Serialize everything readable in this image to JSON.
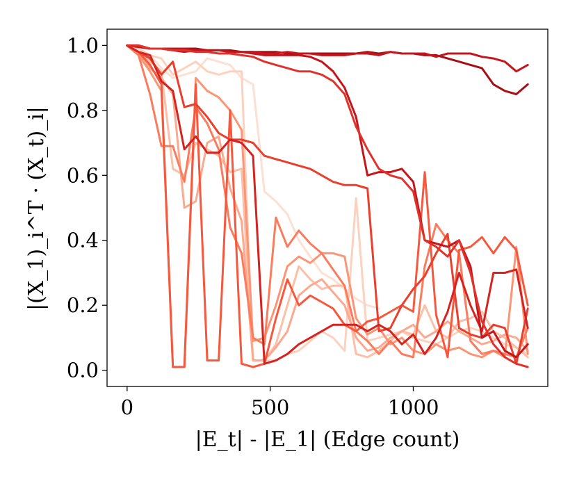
{
  "chart_data": {
    "type": "line",
    "title": "",
    "xlabel": "|E_t| - |E_1| (Edge count)",
    "ylabel": "|(X_1)_i^T · (X_t)_i|",
    "xlim": [
      -70,
      1470
    ],
    "ylim": [
      -0.05,
      1.05
    ],
    "xticks": [
      0,
      500,
      1000
    ],
    "xtick_labels": [
      "0",
      "500",
      "1000"
    ],
    "yticks": [
      0.0,
      0.2,
      0.4,
      0.6,
      0.8,
      1.0
    ],
    "ytick_labels": [
      "0.0",
      "0.2",
      "0.4",
      "0.6",
      "0.8",
      "1.0"
    ],
    "grid": false,
    "legend": "none",
    "series": [
      {
        "color": "#fde0d2",
        "x": [
          0,
          40,
          80,
          120,
          160,
          200,
          240,
          280,
          320,
          360,
          400,
          440,
          480,
          520,
          560,
          600,
          640,
          680,
          720,
          760,
          800,
          840,
          880
        ],
        "y": [
          1.0,
          0.99,
          0.97,
          0.93,
          0.9,
          0.91,
          0.92,
          0.96,
          0.95,
          0.94,
          0.9,
          0.88,
          0.55,
          0.52,
          0.48,
          0.4,
          0.35,
          0.3,
          0.28,
          0.25,
          0.22,
          0.2,
          0.19
        ]
      },
      {
        "color": "#fcd2bf",
        "x": [
          0,
          40,
          80,
          120,
          160,
          200,
          240,
          280,
          320,
          360,
          400,
          440,
          480,
          520,
          560,
          600,
          640,
          680,
          720,
          760,
          800,
          840,
          880,
          920,
          960,
          1000,
          1040,
          1080,
          1120,
          1160,
          1200,
          1240,
          1280,
          1320,
          1360,
          1400
        ],
        "y": [
          1.0,
          0.99,
          0.97,
          0.96,
          0.91,
          0.93,
          0.95,
          0.92,
          0.91,
          0.92,
          0.92,
          0.03,
          0.03,
          0.03,
          0.05,
          0.06,
          0.09,
          0.12,
          0.1,
          0.06,
          0.53,
          0.09,
          0.1,
          0.11,
          0.12,
          0.1,
          0.09,
          0.08,
          0.1,
          0.12,
          0.13,
          0.12,
          0.1,
          0.08,
          0.07,
          0.05
        ]
      },
      {
        "color": "#fcbfa7",
        "x": [
          0,
          40,
          80,
          120,
          160,
          200,
          240,
          280,
          320,
          360,
          400,
          440,
          480,
          520,
          560,
          600,
          640,
          680,
          720,
          760,
          800,
          840,
          880,
          920,
          960,
          1000,
          1040,
          1080,
          1120,
          1160,
          1200,
          1240,
          1280,
          1320,
          1360,
          1400
        ],
        "y": [
          1.0,
          0.98,
          0.95,
          0.92,
          0.62,
          0.6,
          0.7,
          0.68,
          0.66,
          0.61,
          0.62,
          0.03,
          0.03,
          0.08,
          0.2,
          0.32,
          0.28,
          0.25,
          0.26,
          0.26,
          0.05,
          0.04,
          0.06,
          0.09,
          0.12,
          0.11,
          0.2,
          0.12,
          0.1,
          0.15,
          0.16,
          0.18,
          0.12,
          0.1,
          0.07,
          0.04
        ]
      },
      {
        "color": "#fca98f",
        "x": [
          0,
          40,
          80,
          120,
          160,
          200,
          240,
          280,
          320,
          360,
          400,
          440,
          480,
          520,
          560,
          600,
          640,
          680,
          720,
          760,
          800,
          840,
          880,
          920,
          960,
          1000,
          1040,
          1080,
          1120,
          1160,
          1200,
          1240,
          1280,
          1320,
          1360,
          1400
        ],
        "y": [
          1.0,
          0.98,
          0.93,
          0.9,
          0.85,
          0.5,
          0.52,
          0.7,
          0.72,
          0.56,
          0.46,
          0.03,
          0.03,
          0.07,
          0.12,
          0.23,
          0.26,
          0.28,
          0.24,
          0.2,
          0.1,
          0.06,
          0.07,
          0.1,
          0.12,
          0.14,
          0.1,
          0.12,
          0.15,
          0.12,
          0.1,
          0.08,
          0.09,
          0.11,
          0.1,
          0.06
        ]
      },
      {
        "color": "#fc9576",
        "x": [
          0,
          40,
          80,
          120,
          160,
          200,
          240,
          280,
          320,
          360,
          400,
          440,
          480,
          520,
          560,
          600,
          640,
          680,
          720,
          760,
          800,
          840,
          880,
          920,
          960,
          1000,
          1040,
          1080,
          1120,
          1160,
          1200,
          1240,
          1280,
          1320,
          1360,
          1400
        ],
        "y": [
          1.0,
          0.97,
          0.92,
          0.86,
          0.01,
          0.01,
          0.9,
          0.86,
          0.84,
          0.8,
          0.74,
          0.09,
          0.1,
          0.2,
          0.32,
          0.35,
          0.33,
          0.36,
          0.36,
          0.35,
          0.16,
          0.11,
          0.13,
          0.08,
          0.1,
          0.06,
          0.05,
          0.08,
          0.06,
          0.07,
          0.05,
          0.04,
          0.06,
          0.04,
          0.38,
          0.05
        ]
      },
      {
        "color": "#fb7b5c",
        "x": [
          0,
          40,
          80,
          120,
          160,
          200,
          240,
          280,
          320,
          360,
          400,
          440,
          480,
          520,
          560,
          600,
          640,
          680,
          720,
          760,
          800,
          840,
          880,
          920,
          960,
          1000,
          1040,
          1080,
          1120,
          1160,
          1200,
          1240,
          1280,
          1320,
          1360,
          1400
        ],
        "y": [
          1.0,
          0.97,
          0.85,
          0.69,
          0.69,
          0.58,
          0.81,
          0.76,
          0.68,
          0.44,
          0.36,
          0.1,
          0.08,
          0.47,
          0.38,
          0.43,
          0.39,
          0.36,
          0.31,
          0.26,
          0.12,
          0.09,
          0.05,
          0.09,
          0.05,
          0.04,
          0.32,
          0.45,
          0.4,
          0.36,
          0.09,
          0.05,
          0.06,
          0.05,
          0.04,
          0.13
        ]
      },
      {
        "color": "#f6583e",
        "x": [
          0,
          40,
          80,
          120,
          160,
          200,
          240,
          280,
          320,
          360,
          400,
          440,
          480,
          520,
          560,
          600,
          640,
          680,
          720,
          760,
          800,
          840,
          880,
          920,
          960,
          1000,
          1040,
          1080,
          1120,
          1160,
          1200,
          1240,
          1280,
          1320,
          1360,
          1400
        ],
        "y": [
          1.0,
          0.98,
          0.94,
          0.88,
          0.01,
          0.01,
          0.88,
          0.03,
          0.03,
          0.8,
          0.02,
          0.01,
          0.02,
          0.16,
          0.28,
          0.2,
          0.23,
          0.21,
          0.19,
          0.14,
          0.12,
          0.15,
          0.16,
          0.18,
          0.2,
          0.18,
          0.61,
          0.17,
          0.04,
          0.37,
          0.38,
          0.41,
          0.36,
          0.41,
          0.37,
          0.2
        ]
      },
      {
        "color": "#ea3f2c",
        "x": [
          0,
          40,
          80,
          120,
          160,
          200,
          240,
          280,
          320,
          360,
          400,
          440,
          480,
          520,
          560,
          600,
          640,
          680,
          720,
          760,
          800,
          840,
          880,
          920,
          960,
          1000,
          1040,
          1080,
          1120,
          1160,
          1200,
          1240,
          1280,
          1320,
          1360,
          1400
        ],
        "y": [
          1.0,
          0.98,
          0.96,
          0.91,
          0.95,
          0.81,
          0.82,
          0.78,
          0.73,
          0.71,
          0.71,
          0.7,
          0.66,
          0.65,
          0.64,
          0.63,
          0.62,
          0.6,
          0.58,
          0.57,
          0.57,
          0.56,
          0.12,
          0.13,
          0.2,
          0.25,
          0.29,
          0.36,
          0.42,
          0.13,
          0.11,
          0.1,
          0.14,
          0.13,
          0.02,
          0.19
        ]
      },
      {
        "color": "#d52420",
        "x": [
          0,
          40,
          80,
          120,
          160,
          200,
          240,
          280,
          320,
          360,
          400,
          440,
          480,
          520,
          560,
          600,
          640,
          680,
          720,
          760,
          800,
          840,
          880,
          920,
          960,
          1000,
          1040,
          1080,
          1120,
          1160,
          1200,
          1240,
          1280,
          1320,
          1360,
          1400
        ],
        "y": [
          1.0,
          0.98,
          0.97,
          0.89,
          0.86,
          0.68,
          0.72,
          0.67,
          0.67,
          0.71,
          0.7,
          0.66,
          0.02,
          0.03,
          0.05,
          0.08,
          0.1,
          0.12,
          0.14,
          0.14,
          0.14,
          0.12,
          0.14,
          0.12,
          0.08,
          0.11,
          0.05,
          0.1,
          0.18,
          0.3,
          0.2,
          0.12,
          0.3,
          0.3,
          0.31,
          0.13
        ]
      },
      {
        "color": "#c4161c",
        "x": [
          0,
          40,
          80,
          120,
          160,
          200,
          240,
          280,
          320,
          360,
          400,
          440,
          480,
          520,
          560,
          600,
          640,
          680,
          720,
          760,
          800,
          840,
          880,
          920,
          960,
          1000,
          1040,
          1080,
          1120,
          1160,
          1200,
          1240,
          1280,
          1320,
          1360,
          1400
        ],
        "y": [
          1.0,
          0.995,
          0.99,
          0.99,
          0.985,
          0.98,
          0.985,
          0.985,
          0.985,
          0.98,
          0.98,
          0.975,
          0.97,
          0.97,
          0.97,
          0.97,
          0.965,
          0.95,
          0.92,
          0.87,
          0.78,
          0.6,
          0.61,
          0.61,
          0.62,
          0.58,
          0.4,
          0.39,
          0.38,
          0.4,
          0.32,
          0.1,
          0.12,
          0.06,
          0.04,
          0.08
        ]
      },
      {
        "color": "#a50f15",
        "x": [
          0,
          40,
          80,
          120,
          160,
          200,
          240,
          280,
          320,
          360,
          400,
          440,
          480,
          520,
          560,
          600,
          640,
          680,
          720,
          760,
          800,
          840,
          880,
          920,
          960,
          1000,
          1040,
          1080,
          1120,
          1160,
          1200,
          1240,
          1280,
          1320,
          1360,
          1400
        ],
        "y": [
          1.0,
          1.0,
          0.99,
          0.99,
          0.99,
          0.99,
          0.99,
          0.985,
          0.985,
          0.985,
          0.98,
          0.98,
          0.98,
          0.98,
          0.975,
          0.975,
          0.975,
          0.975,
          0.975,
          0.975,
          0.975,
          0.98,
          0.975,
          0.98,
          0.975,
          0.975,
          0.97,
          0.97,
          0.96,
          0.95,
          0.94,
          0.93,
          0.88,
          0.86,
          0.85,
          0.88
        ]
      },
      {
        "color": "#c4161c",
        "x": [
          0,
          40,
          80,
          120,
          160,
          200,
          240,
          280,
          320,
          360,
          400,
          440,
          480,
          520,
          560,
          600,
          640,
          680,
          720,
          760,
          800,
          840,
          880,
          920,
          960,
          1000,
          1040,
          1080,
          1120,
          1160,
          1200,
          1240,
          1280,
          1320,
          1360,
          1400
        ],
        "y": [
          1.0,
          1.0,
          0.99,
          0.99,
          0.99,
          0.99,
          0.985,
          0.985,
          0.985,
          0.98,
          0.98,
          0.98,
          0.975,
          0.975,
          0.98,
          0.975,
          0.975,
          0.97,
          0.97,
          0.97,
          0.975,
          0.975,
          0.97,
          0.98,
          0.975,
          0.975,
          0.975,
          0.965,
          0.975,
          0.975,
          0.975,
          0.965,
          0.96,
          0.95,
          0.92,
          0.94
        ]
      },
      {
        "color": "#e0322b",
        "x": [
          0,
          40,
          80,
          120,
          160,
          200,
          240,
          280,
          320,
          360,
          400,
          440,
          480,
          520,
          560,
          600,
          640,
          680,
          720,
          760,
          800,
          840,
          880,
          920,
          960,
          1000,
          1040,
          1080,
          1120,
          1160,
          1200,
          1240,
          1280,
          1320,
          1360,
          1400
        ],
        "y": [
          1.0,
          1.0,
          0.99,
          0.99,
          0.985,
          0.985,
          0.98,
          0.98,
          0.975,
          0.975,
          0.97,
          0.965,
          0.95,
          0.94,
          0.93,
          0.92,
          0.92,
          0.91,
          0.89,
          0.85,
          0.75,
          0.68,
          0.62,
          0.6,
          0.59,
          0.55,
          0.4,
          0.38,
          0.35,
          0.4,
          0.3,
          0.15,
          0.08,
          0.04,
          0.02,
          0.01
        ]
      }
    ]
  }
}
